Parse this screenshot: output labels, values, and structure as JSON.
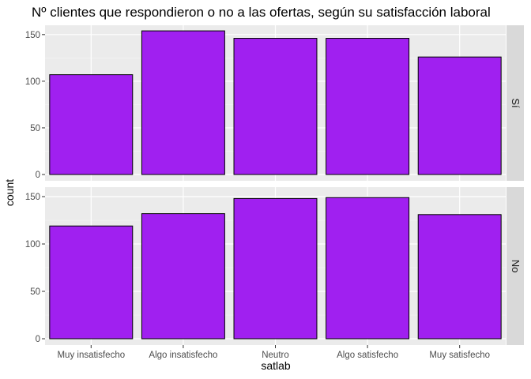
{
  "chart_data": {
    "type": "bar",
    "title": "Nº clientes que respondieron o no a las ofertas, según su satisfacción laboral",
    "xlabel": "satlab",
    "ylabel": "count",
    "categories": [
      "Muy insatisfecho",
      "Algo insatisfecho",
      "Neutro",
      "Algo satisfecho",
      "Muy satisfecho"
    ],
    "ylim": [
      0,
      160
    ],
    "yticks": [
      0,
      50,
      100,
      150
    ],
    "grid": true,
    "bar_fill": "#a020f0",
    "bar_stroke": "#000000",
    "panel_background": "#ebebeb",
    "strip_background": "#d9d9d9",
    "facets": [
      {
        "label": "Sí",
        "values": [
          107,
          154,
          146,
          146,
          126
        ]
      },
      {
        "label": "No",
        "values": [
          119,
          132,
          148,
          149,
          131
        ]
      }
    ]
  }
}
